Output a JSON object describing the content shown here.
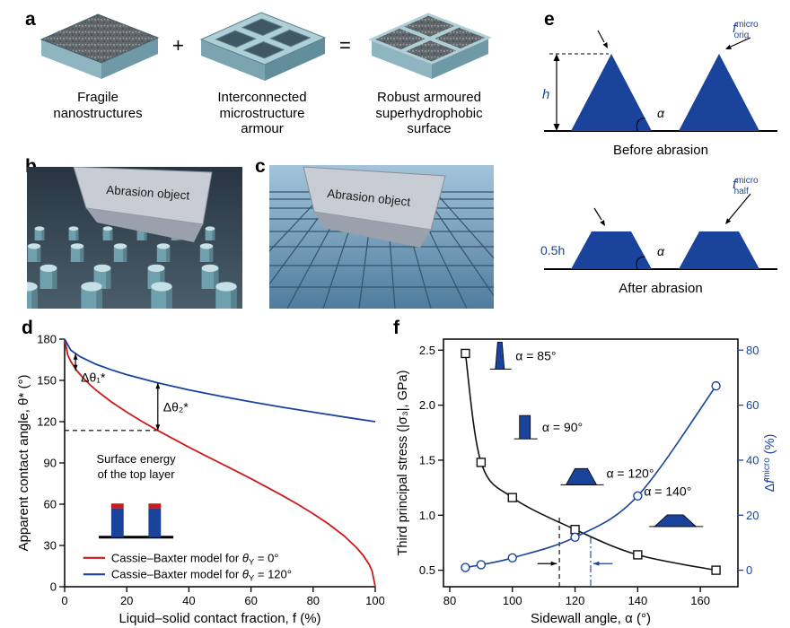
{
  "panels": {
    "a": {
      "letter": "a",
      "plus": "+",
      "equals": "=",
      "captions": [
        "Fragile nanostructures",
        "Interconnected microstructure armour",
        "Robust armoured superhydrophobic surface"
      ]
    },
    "b": {
      "letter": "b",
      "object_label": "Abrasion object"
    },
    "c": {
      "letter": "c",
      "object_label": "Abrasion object"
    },
    "d": {
      "letter": "d"
    },
    "e": {
      "letter": "e",
      "top": {
        "h": "h",
        "alpha": "α",
        "f": {
          "base": "f",
          "sup": "micro",
          "sub": "orig"
        },
        "caption": "Before abrasion"
      },
      "bottom": {
        "halfh": "0.5h",
        "alpha": "α",
        "f": {
          "base": "f",
          "sup": "micro",
          "sub": "half"
        },
        "caption": "After abrasion"
      }
    },
    "f": {
      "letter": "f"
    }
  },
  "chart_data": [
    {
      "panel": "d",
      "type": "line",
      "xlabel": "Liquid–solid contact fraction, f (%)",
      "ylabel": "Apparent contact angle, θ* (°)",
      "xlim": [
        0,
        100
      ],
      "ylim": [
        0,
        180
      ],
      "xticks": [
        0,
        20,
        40,
        60,
        80,
        100
      ],
      "yticks": [
        0,
        30,
        60,
        90,
        120,
        150,
        180
      ],
      "grid": false,
      "series": [
        {
          "name": "Cassie–Baxter model for θY = 0°",
          "color": "#cc1a1a",
          "points": [
            [
              0,
              180
            ],
            [
              1,
              168.5
            ],
            [
              2,
              163.7
            ],
            [
              4,
              156.9
            ],
            [
              6,
              151.6
            ],
            [
              8,
              147.1
            ],
            [
              10,
              143.1
            ],
            [
              15,
              134.4
            ],
            [
              20,
              126.9
            ],
            [
              25,
              120
            ],
            [
              30,
              113.6
            ],
            [
              35,
              107.5
            ],
            [
              40,
              101.5
            ],
            [
              45,
              95.7
            ],
            [
              50,
              90
            ],
            [
              55,
              84.3
            ],
            [
              60,
              78.5
            ],
            [
              65,
              72.5
            ],
            [
              70,
              66.4
            ],
            [
              75,
              60
            ],
            [
              80,
              53.1
            ],
            [
              85,
              45.6
            ],
            [
              90,
              36.9
            ],
            [
              94,
              28.4
            ],
            [
              96,
              23.1
            ],
            [
              98,
              16.3
            ],
            [
              99,
              11.5
            ],
            [
              100,
              0
            ]
          ]
        },
        {
          "name": "Cassie–Baxter model for θY = 120°",
          "color": "#1a449b",
          "points": [
            [
              0,
              180
            ],
            [
              2,
              171.9
            ],
            [
              5,
              167.2
            ],
            [
              10,
              161.8
            ],
            [
              15,
              157.7
            ],
            [
              20,
              154.2
            ],
            [
              30,
              148.2
            ],
            [
              40,
              143.1
            ],
            [
              50,
              138.6
            ],
            [
              60,
              134.4
            ],
            [
              70,
              130.5
            ],
            [
              80,
              126.9
            ],
            [
              90,
              123.4
            ],
            [
              100,
              120
            ]
          ]
        }
      ],
      "legend": [
        {
          "color": "#cc1a1a",
          "prefix": "Cassie–Baxter model for ",
          "sym": "θ",
          "sub": "Y",
          "suffix": " = 0°"
        },
        {
          "color": "#1a449b",
          "prefix": "Cassie–Baxter model for ",
          "sym": "θ",
          "sub": "Y",
          "suffix": " = 120°"
        }
      ],
      "annotations": {
        "delta1": "Δθ₁*",
        "delta1_f": 3.5,
        "delta1_from": 157,
        "delta1_to": 169.5,
        "delta2": "Δθ₂*",
        "delta2_f": 30,
        "delta2_from": 113.6,
        "delta2_to": 148.2,
        "inset_lines": [
          "Surface energy",
          "of the top layer"
        ]
      },
      "guides": {
        "dash_theta": 113.6,
        "dash_f": 30
      }
    },
    {
      "panel": "f",
      "type": "scatter",
      "xlabel": "Sidewall angle, α (°)",
      "ylabel_left": "Third principal stress (|σ₃|, GPa)",
      "ylabel_right": {
        "delta": "Δ",
        "var": "f",
        "sup": "micro",
        "suffix": " (%)"
      },
      "xlim": [
        78,
        172
      ],
      "ylim_left": [
        0.35,
        2.6
      ],
      "ylim_right": [
        -6,
        84
      ],
      "xticks": [
        80,
        100,
        120,
        140,
        160
      ],
      "yticks_left": [
        "0.5",
        "1.0",
        "1.5",
        "2.0",
        "2.5"
      ],
      "yticks_right": [
        0,
        20,
        40,
        60,
        80
      ],
      "series": [
        {
          "name": "third-principal-stress",
          "axis": "left",
          "marker": "square",
          "color": "#111111",
          "points": [
            [
              85,
              2.47
            ],
            [
              90,
              1.48
            ],
            [
              100,
              1.16
            ],
            [
              120,
              0.87
            ],
            [
              140,
              0.64
            ],
            [
              165,
              0.5
            ]
          ]
        },
        {
          "name": "delta-f-micro",
          "axis": "right",
          "marker": "circle",
          "color": "#1a449b",
          "points": [
            [
              85,
              1
            ],
            [
              90,
              2
            ],
            [
              100,
              4.5
            ],
            [
              120,
              12
            ],
            [
              140,
              27
            ],
            [
              165,
              67
            ]
          ]
        }
      ],
      "annotations": [
        {
          "label": "α = 85°",
          "shape": "spike",
          "x": 96,
          "y": 2.45,
          "tx": 101,
          "ty": 2.45
        },
        {
          "label": "α = 90°",
          "shape": "pillar",
          "x": 104,
          "y": 1.8,
          "tx": 109.5,
          "ty": 1.8
        },
        {
          "label": "α = 120°",
          "shape": "trapezoid",
          "x": 122,
          "y": 1.35,
          "tx": 130,
          "ty": 1.38
        },
        {
          "label": "α = 140°",
          "shape": "trapezoid_wide",
          "x": 152,
          "y": 0.95,
          "tx": 142,
          "ty": 1.22
        }
      ],
      "guides": {
        "black_dash_x": 115,
        "blue_dash_x": 125
      }
    }
  ]
}
